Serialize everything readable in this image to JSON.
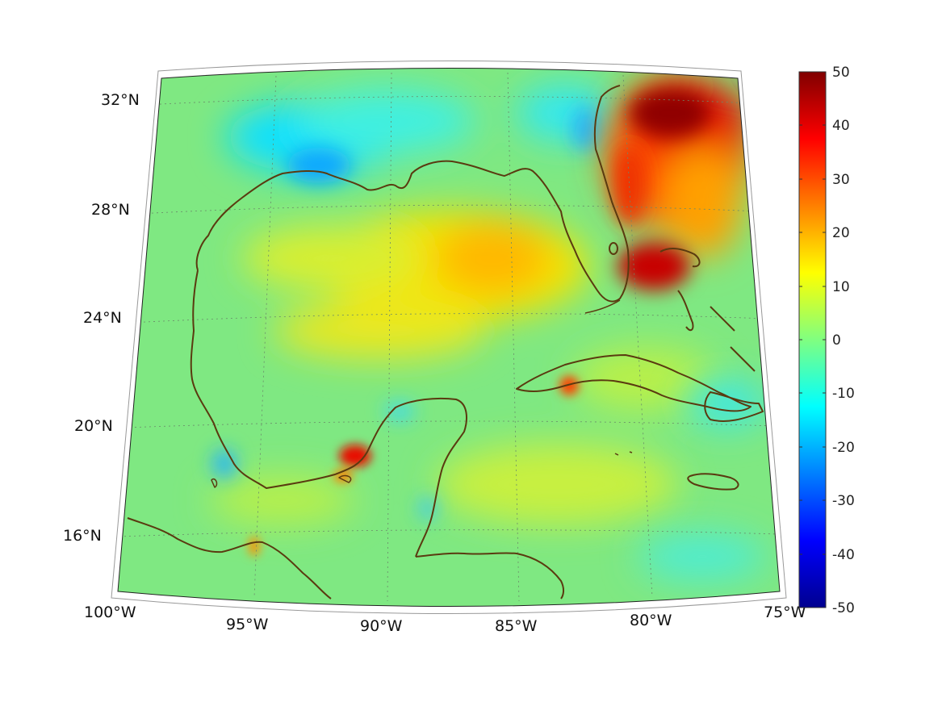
{
  "map": {
    "projection": "conic",
    "region": "Gulf of Mexico / Caribbean",
    "lon_range": [
      -100,
      -75
    ],
    "lat_range": [
      14,
      33
    ],
    "lon_ticks": [
      "100°W",
      "95°W",
      "90°W",
      "85°W",
      "80°W",
      "75°W"
    ],
    "lat_ticks": [
      "16°N",
      "20°N",
      "24°N",
      "28°N",
      "32°N"
    ],
    "graticule": "dotted",
    "coastline_color": "#5a3a10"
  },
  "colorbar": {
    "colormap": "jet",
    "min": -50,
    "max": 50,
    "tick_labels": [
      "50",
      "40",
      "30",
      "20",
      "10",
      "0",
      "-10",
      "-20",
      "-30",
      "-40",
      "-50"
    ]
  }
}
